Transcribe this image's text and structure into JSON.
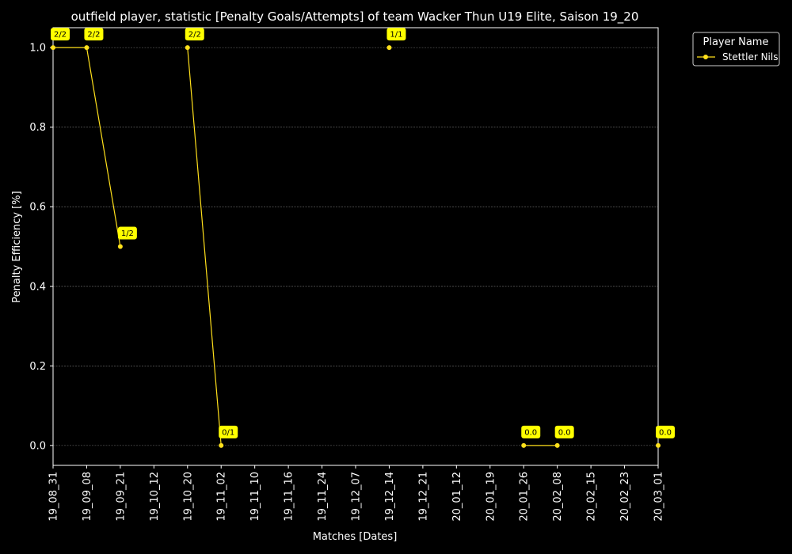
{
  "chart_data": {
    "type": "line",
    "title": "outfield player, statistic [Penalty Goals/Attempts] of team Wacker Thun U19 Elite, Saison 19_20",
    "xlabel": "Matches [Dates]",
    "ylabel": "Penalty Efficiency [%]",
    "ylim": [
      -0.05,
      1.05
    ],
    "yticks": [
      0.0,
      0.2,
      0.4,
      0.6,
      0.8,
      1.0
    ],
    "ytick_labels": [
      "0.0",
      "0.2",
      "0.4",
      "0.6",
      "0.8",
      "1.0"
    ],
    "categories": [
      "19_08_31",
      "19_09_08",
      "19_09_21",
      "19_10_12",
      "19_10_20",
      "19_11_02",
      "19_11_10",
      "19_11_16",
      "19_11_24",
      "19_12_07",
      "19_12_14",
      "19_12_21",
      "20_01_12",
      "20_01_19",
      "20_01_26",
      "20_02_08",
      "20_02_15",
      "20_02_23",
      "20_03_01"
    ],
    "grid": true,
    "legend": {
      "title": "Player Name",
      "placement": "upper right, outside plot"
    },
    "series": [
      {
        "name": "Stettler Nils",
        "color": "#ffe01b",
        "values": [
          1.0,
          1.0,
          0.5,
          null,
          1.0,
          0.0,
          null,
          null,
          null,
          null,
          1.0,
          null,
          null,
          null,
          0.0,
          0.0,
          null,
          null,
          0.0
        ],
        "labels": [
          "2/2",
          "2/2",
          "1/2",
          null,
          "2/2",
          "0/1",
          null,
          null,
          null,
          null,
          "1/1",
          null,
          null,
          null,
          "0.0",
          "0.0",
          null,
          null,
          "0.0"
        ]
      }
    ],
    "background": "#000000",
    "annotation_bg": "#ffff00"
  }
}
